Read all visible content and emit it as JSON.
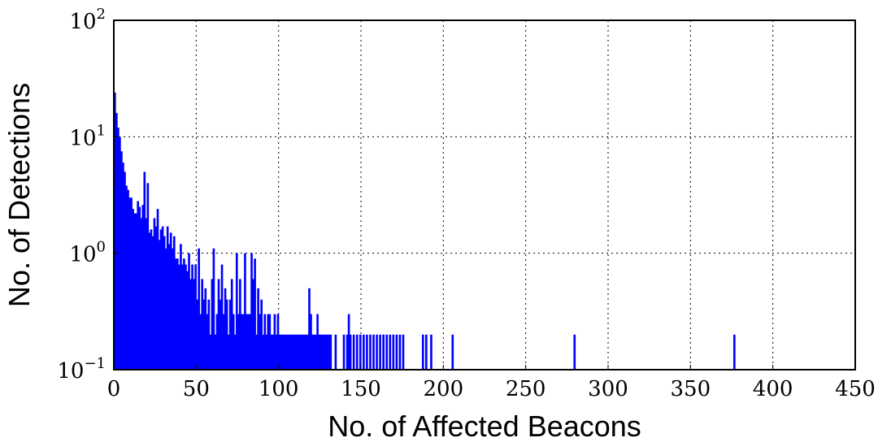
{
  "chart_data": {
    "type": "bar",
    "title": "",
    "xlabel": "No. of Affected Beacons",
    "ylabel": "No. of Detections",
    "xlim": [
      0,
      450
    ],
    "ylim": [
      0.1,
      100
    ],
    "yscale": "log",
    "grid": true,
    "bar_color": "#0000ff",
    "x_ticks": [
      "0",
      "50",
      "100",
      "150",
      "200",
      "250",
      "300",
      "350",
      "400",
      "450"
    ],
    "y_ticks": [
      {
        "base": "10",
        "exp": "−1"
      },
      {
        "base": "10",
        "exp": "0"
      },
      {
        "base": "10",
        "exp": "1"
      },
      {
        "base": "10",
        "exp": "2"
      }
    ],
    "bin_width": 1,
    "x": [
      1,
      2,
      3,
      4,
      5,
      6,
      7,
      8,
      9,
      10,
      11,
      12,
      13,
      14,
      15,
      16,
      17,
      18,
      19,
      20,
      21,
      22,
      23,
      24,
      25,
      26,
      27,
      28,
      29,
      30,
      31,
      32,
      33,
      34,
      35,
      36,
      37,
      38,
      39,
      40,
      41,
      42,
      43,
      44,
      45,
      46,
      47,
      48,
      49,
      50,
      51,
      52,
      53,
      54,
      55,
      56,
      57,
      58,
      59,
      60,
      61,
      62,
      63,
      64,
      65,
      66,
      67,
      68,
      69,
      70,
      71,
      72,
      73,
      74,
      75,
      76,
      77,
      78,
      79,
      80,
      81,
      82,
      83,
      84,
      85,
      86,
      87,
      88,
      89,
      90,
      91,
      92,
      93,
      94,
      95,
      96,
      97,
      98,
      99,
      100,
      101,
      102,
      103,
      104,
      105,
      106,
      107,
      108,
      109,
      110,
      111,
      112,
      113,
      114,
      115,
      116,
      117,
      118,
      119,
      120,
      121,
      122,
      123,
      124,
      125,
      126,
      127,
      128,
      129,
      130,
      131,
      132,
      135,
      140,
      142,
      143,
      144,
      146,
      148,
      150,
      152,
      154,
      156,
      158,
      160,
      162,
      164,
      166,
      168,
      170,
      172,
      174,
      176,
      188,
      190,
      193,
      206,
      280,
      377
    ],
    "values": [
      24,
      16,
      12,
      10,
      7.5,
      6,
      5,
      3.8,
      3.5,
      3,
      3,
      2.4,
      2.2,
      2.2,
      2.8,
      2.5,
      2,
      2.6,
      5,
      2,
      4,
      1.5,
      1.6,
      1.4,
      2,
      1.7,
      2.4,
      1.3,
      1.6,
      1.7,
      1.4,
      1.1,
      1.7,
      1.2,
      1.5,
      1.1,
      1.4,
      0.9,
      0.9,
      0.8,
      1.2,
      0.8,
      0.9,
      0.8,
      0.7,
      1,
      0.6,
      0.8,
      0.6,
      0.8,
      0.4,
      1.1,
      0.3,
      0.6,
      0.4,
      0.5,
      0.3,
      0.4,
      0.2,
      0.6,
      1.1,
      0.2,
      0.3,
      0.6,
      0.4,
      0.8,
      0.3,
      0.5,
      0.4,
      0.2,
      0.4,
      0.6,
      0.3,
      0.2,
      1,
      0.3,
      0.6,
      0.3,
      0.3,
      1,
      0.3,
      0.3,
      0.3,
      1,
      0.6,
      0.9,
      0.2,
      0.5,
      0.3,
      0.4,
      0.2,
      0.3,
      0.2,
      0.3,
      0.3,
      0.2,
      0.2,
      0.3,
      0.2,
      0.3,
      0.2,
      0.2,
      0.2,
      0.2,
      0.2,
      0.2,
      0.2,
      0.2,
      0.2,
      0.2,
      0.2,
      0.2,
      0.2,
      0.2,
      0.2,
      0.2,
      0.2,
      0.2,
      0.5,
      0.3,
      0.2,
      0.2,
      0.2,
      0.3,
      0.2,
      0.2,
      0.2,
      0.2,
      0.2,
      0.2,
      0.2,
      0.2,
      0.2,
      0.2,
      0.2,
      0.3,
      0.2,
      0.2,
      0.2,
      0.2,
      0.2,
      0.2,
      0.2,
      0.2,
      0.2,
      0.2,
      0.2,
      0.2,
      0.2,
      0.2,
      0.2,
      0.2,
      0.2,
      0.2,
      0.2,
      0.2,
      0.2,
      0.2,
      0.2
    ]
  }
}
